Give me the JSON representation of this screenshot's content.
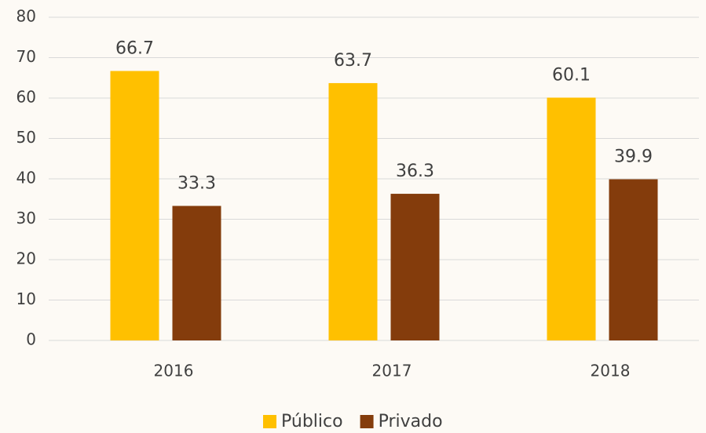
{
  "chart_data": {
    "type": "bar",
    "categories": [
      "2016",
      "2017",
      "2018"
    ],
    "series": [
      {
        "name": "Público",
        "color": "#FFC000",
        "values": [
          66.7,
          63.7,
          60.1
        ]
      },
      {
        "name": "Privado",
        "color": "#843C0C",
        "values": [
          33.3,
          36.3,
          39.9
        ]
      }
    ],
    "ylim": [
      0,
      80
    ],
    "yticks": [
      0,
      10,
      20,
      30,
      40,
      50,
      60,
      70,
      80
    ],
    "grid": true,
    "legend": "bottom"
  }
}
